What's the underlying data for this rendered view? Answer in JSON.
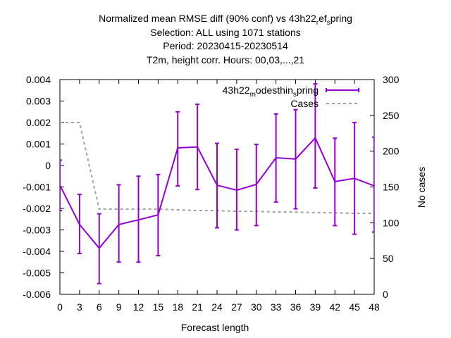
{
  "chart_data": {
    "type": "line",
    "title_lines": [
      "Normalized mean RMSE diff (90% conf) vs 43h22_ref_spring",
      "Selection: ALL using  1071 stations",
      "Period: 20230415-20230514",
      "T2m, height corr.   Hours:  00,03,...,21"
    ],
    "xlabel": "Forecast length",
    "ylabel": "",
    "y2label": "No cases",
    "x": [
      0,
      3,
      6,
      9,
      12,
      15,
      18,
      21,
      24,
      27,
      30,
      33,
      36,
      39,
      42,
      45,
      48
    ],
    "x_ticks": [
      "0",
      "3",
      "6",
      "9",
      "12",
      "15",
      "18",
      "21",
      "24",
      "27",
      "30",
      "33",
      "36",
      "39",
      "42",
      "45",
      "48"
    ],
    "xlim": [
      0,
      48
    ],
    "ylim": [
      -0.006,
      0.004
    ],
    "y_ticks": [
      "0.004",
      "0.003",
      "0.002",
      "0.001",
      "0",
      "-0.001",
      "-0.002",
      "-0.003",
      "-0.004",
      "-0.005",
      "-0.006"
    ],
    "y2lim": [
      0,
      300
    ],
    "y2_ticks": [
      "300",
      "250",
      "200",
      "150",
      "100",
      "50",
      "0"
    ],
    "grid": false,
    "legend_position": "top-right",
    "series": [
      {
        "name": "43h22_modesthin_spring",
        "color": "#9400d3",
        "axis": "left",
        "style": "line-errorbars",
        "values": [
          -0.00092,
          -0.00275,
          -0.00385,
          -0.00275,
          -0.00253,
          -0.0023,
          0.00082,
          0.00086,
          -0.00092,
          -0.00115,
          -0.00088,
          0.00036,
          0.0003,
          0.00128,
          -0.00075,
          -0.0006,
          -0.00095
        ],
        "err_low": [
          -0.0021,
          -0.0041,
          -0.0055,
          -0.0045,
          -0.0045,
          -0.0042,
          -0.00095,
          -0.00112,
          -0.0029,
          -0.003,
          -0.0028,
          -0.0017,
          -0.00202,
          -0.00105,
          -0.0028,
          -0.0032,
          -0.0031
        ],
        "err_high": [
          0.00025,
          -0.00135,
          -0.00225,
          -0.0009,
          -0.0005,
          -0.00042,
          0.0025,
          0.00285,
          0.00103,
          0.00075,
          0.00098,
          0.0024,
          0.0026,
          0.0038,
          0.00127,
          0.002,
          0.00132
        ]
      },
      {
        "name": "Cases",
        "color": "#a0a0a0",
        "axis": "right",
        "style": "dashed",
        "values": [
          240,
          240,
          119,
          119,
          119,
          119,
          118,
          117,
          117,
          116,
          116,
          115,
          115,
          114,
          114,
          113,
          113
        ]
      }
    ]
  }
}
